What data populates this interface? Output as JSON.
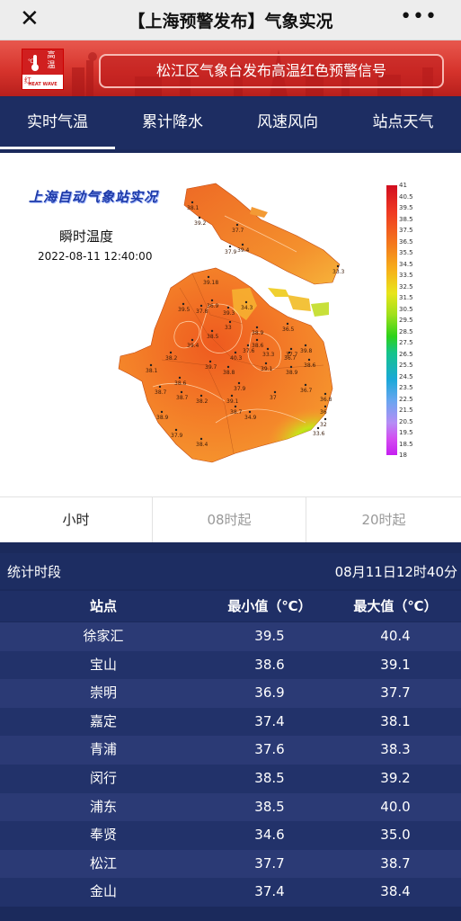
{
  "header": {
    "close_icon": "close-icon",
    "title": "【上海预警发布】气象实况",
    "more_icon": "more-icon"
  },
  "banner": {
    "badge": {
      "glyph_top": "高",
      "glyph_bottom": "温",
      "color_label": "红",
      "english": "HEAT WAVE"
    },
    "signal_text": "松江区气象台发布高温红色预警信号"
  },
  "tabs": [
    {
      "label": "实时气温",
      "active": true
    },
    {
      "label": "累计降水",
      "active": false
    },
    {
      "label": "风速风向",
      "active": false
    },
    {
      "label": "站点天气",
      "active": false
    }
  ],
  "map": {
    "title": "上海自动气象站实况",
    "subtitle": "瞬时温度",
    "datetime": "2022-08-11 12:40:00",
    "legend_labels": [
      "41",
      "40.5",
      "39.5",
      "38.5",
      "37.5",
      "36.5",
      "35.5",
      "34.5",
      "33.5",
      "32.5",
      "31.5",
      "30.5",
      "29.5",
      "28.5",
      "27.5",
      "26.5",
      "25.5",
      "24.5",
      "23.5",
      "22.5",
      "21.5",
      "20.5",
      "19.5",
      "18.5",
      "18"
    ],
    "station_values": [
      "38.1",
      "39.2",
      "37.7",
      "37.9",
      "39.4",
      "33.3",
      "39.18",
      "34.3",
      "39.5",
      "37.8",
      "36.9",
      "39.3",
      "33",
      "38.5",
      "39.4",
      "38.2",
      "36.5",
      "38.1",
      "39.7",
      "40.3",
      "38.9",
      "38.6",
      "36.7",
      "39.8",
      "33.3",
      "37.7",
      "37.6",
      "39.1",
      "38.9",
      "38.8",
      "38.6",
      "38.7",
      "37.9",
      "37",
      "36.7",
      "36.8",
      "38.6",
      "38.7",
      "38.2",
      "39.1",
      "38.7",
      "36",
      "32",
      "38.9",
      "34.9",
      "33.6",
      "37.9",
      "38.4"
    ]
  },
  "subtabs": [
    {
      "label": "小时",
      "active": true
    },
    {
      "label": "08时起",
      "active": false
    },
    {
      "label": "20时起",
      "active": false
    }
  ],
  "period": {
    "label": "统计时段",
    "value": "08月11日12时40分"
  },
  "table": {
    "headers": [
      "站点",
      "最小值（℃）",
      "最大值（℃）"
    ],
    "rows": [
      {
        "station": "徐家汇",
        "min": "39.5",
        "max": "40.4"
      },
      {
        "station": "宝山",
        "min": "38.6",
        "max": "39.1"
      },
      {
        "station": "崇明",
        "min": "36.9",
        "max": "37.7"
      },
      {
        "station": "嘉定",
        "min": "37.4",
        "max": "38.1"
      },
      {
        "station": "青浦",
        "min": "37.6",
        "max": "38.3"
      },
      {
        "station": "闵行",
        "min": "38.5",
        "max": "39.2"
      },
      {
        "station": "浦东",
        "min": "38.5",
        "max": "40.0"
      },
      {
        "station": "奉贤",
        "min": "34.6",
        "max": "35.0"
      },
      {
        "station": "松江",
        "min": "37.7",
        "max": "38.7"
      },
      {
        "station": "金山",
        "min": "37.4",
        "max": "38.4"
      }
    ]
  },
  "colors": {
    "nav_bg": "#1d2d62",
    "warning_red": "#d6332c",
    "map_orange": "#f07a2a"
  }
}
